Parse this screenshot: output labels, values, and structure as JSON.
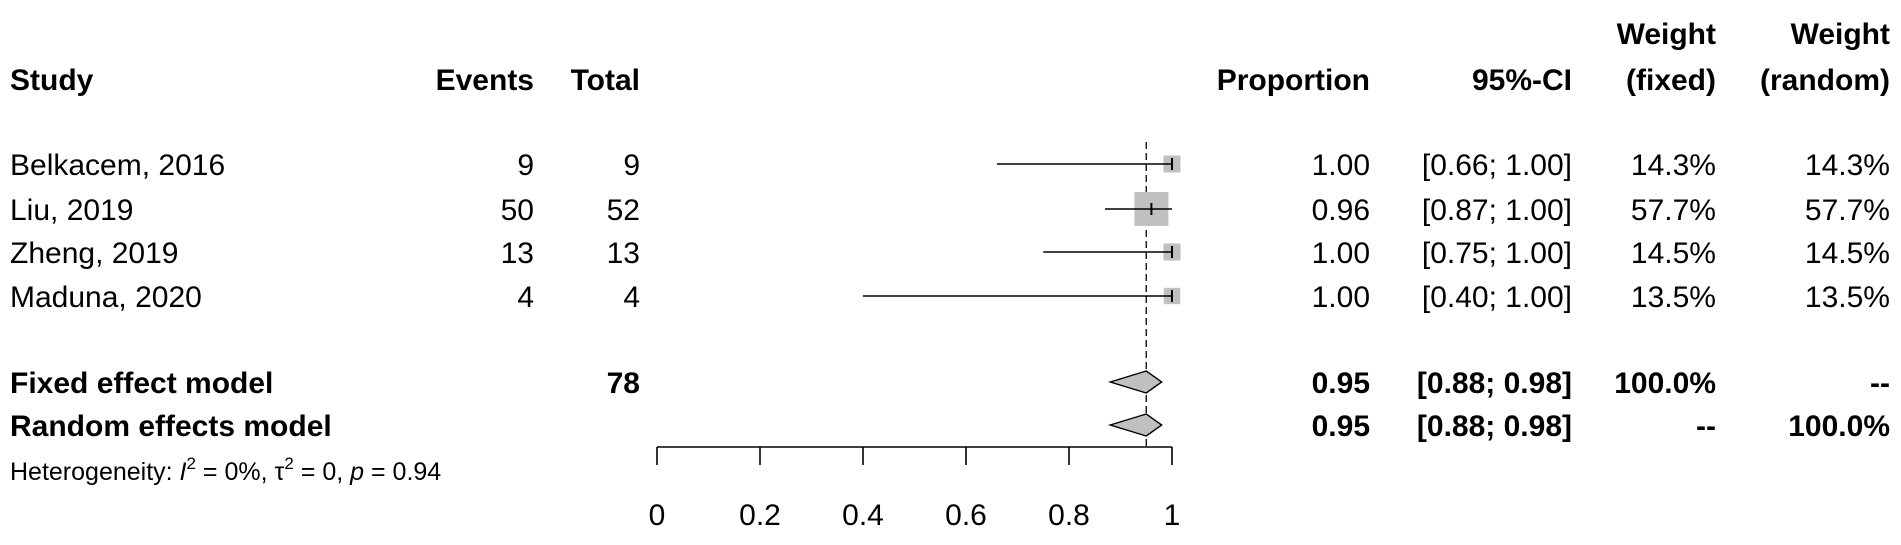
{
  "chart_data": {
    "type": "forest",
    "headers": {
      "study": "Study",
      "events": "Events",
      "total": "Total",
      "proportion": "Proportion",
      "ci": "95%-CI",
      "weight_fixed_line1": "Weight",
      "weight_fixed_line2": "(fixed)",
      "weight_random_line1": "Weight",
      "weight_random_line2": "(random)"
    },
    "studies": [
      {
        "study": "Belkacem, 2016",
        "events": "9",
        "total": "9",
        "proportion_text": "1.00",
        "ci_text": "[0.66; 1.00]",
        "w_fixed": "14.3%",
        "w_random": "14.3%",
        "est": 1.0,
        "lo": 0.66,
        "hi": 1.0,
        "weight": 14.3
      },
      {
        "study": "Liu, 2019",
        "events": "50",
        "total": "52",
        "proportion_text": "0.96",
        "ci_text": "[0.87; 1.00]",
        "w_fixed": "57.7%",
        "w_random": "57.7%",
        "est": 0.96,
        "lo": 0.87,
        "hi": 1.0,
        "weight": 57.7
      },
      {
        "study": "Zheng, 2019",
        "events": "13",
        "total": "13",
        "proportion_text": "1.00",
        "ci_text": "[0.75; 1.00]",
        "w_fixed": "14.5%",
        "w_random": "14.5%",
        "est": 1.0,
        "lo": 0.75,
        "hi": 1.0,
        "weight": 14.5
      },
      {
        "study": "Maduna, 2020",
        "events": "4",
        "total": "4",
        "proportion_text": "1.00",
        "ci_text": "[0.40; 1.00]",
        "w_fixed": "13.5%",
        "w_random": "13.5%",
        "est": 1.0,
        "lo": 0.4,
        "hi": 1.0,
        "weight": 13.5
      }
    ],
    "models": [
      {
        "label": "Fixed effect model",
        "total": "78",
        "proportion_text": "0.95",
        "ci_text": "[0.88; 0.98]",
        "w_fixed": "100.0%",
        "w_random": "--",
        "est": 0.95,
        "lo": 0.88,
        "hi": 0.98
      },
      {
        "label": "Random effects model",
        "total": "",
        "proportion_text": "0.95",
        "ci_text": "[0.88; 0.98]",
        "w_fixed": "--",
        "w_random": "100.0%",
        "est": 0.95,
        "lo": 0.88,
        "hi": 0.98
      }
    ],
    "heterogeneity": {
      "prefix": "Heterogeneity: ",
      "i2_symbol": "I",
      "i2_exp": "2",
      "i2_value": " = 0%, ",
      "tau_symbol": "τ",
      "tau_exp": "2",
      "tau_value": " = 0, ",
      "p_symbol": "p",
      "p_value": " = 0.94"
    },
    "x_ticks": [
      0,
      0.2,
      0.4,
      0.6,
      0.8,
      1
    ],
    "x_tick_labels": [
      "0",
      "0.2",
      "0.4",
      "0.6",
      "0.8",
      "1"
    ],
    "xlim": [
      0,
      1
    ],
    "reference_line": 0.95,
    "colors": {
      "square": "#c0c0c0",
      "diamond": "#c0c0c0",
      "line": "#000000"
    }
  }
}
